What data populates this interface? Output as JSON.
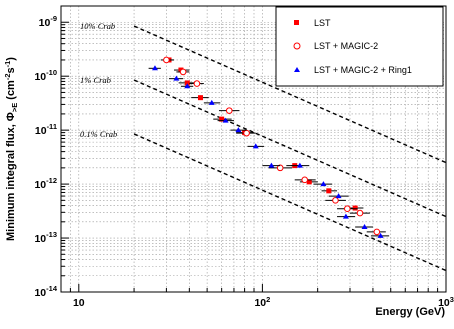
{
  "chart_data": {
    "type": "scatter",
    "x_scale": "log",
    "y_scale": "log",
    "xlim": [
      8,
      1000
    ],
    "ylim": [
      1e-14,
      2e-09
    ],
    "xlabel": "Energy (GeV)",
    "ylabel": "Minimum integral flux, Φ",
    "ylabel_sub": ">E",
    "ylabel_unit": " (cm",
    "ylabel_unit_exp1": "-2",
    "ylabel_unit_mid": "s",
    "ylabel_unit_exp2": "-1",
    "ylabel_unit_end": ")",
    "grid": true,
    "legend_placement": "top-right",
    "x_ticks": [
      {
        "value": 10,
        "label": "10"
      },
      {
        "value": 100,
        "label": "10",
        "exp": "2"
      },
      {
        "value": 1000,
        "label": "10",
        "exp": "3"
      }
    ],
    "y_ticks": [
      {
        "value": 1e-09,
        "label": "10",
        "exp": "-9"
      },
      {
        "value": 1e-10,
        "label": "10",
        "exp": "-10"
      },
      {
        "value": 1e-11,
        "label": "10",
        "exp": "-11"
      },
      {
        "value": 1e-12,
        "label": "10",
        "exp": "-12"
      },
      {
        "value": 1e-13,
        "label": "10",
        "exp": "-13"
      },
      {
        "value": 1e-14,
        "label": "10",
        "exp": "-14"
      }
    ],
    "reference_lines": [
      {
        "label": "10% Crab",
        "x": [
          20,
          1000
        ],
        "y": [
          8.5e-10,
          2.5e-12
        ]
      },
      {
        "label": "1% Crab",
        "x": [
          20,
          1000
        ],
        "y": [
          8.5e-11,
          2.5e-13
        ]
      },
      {
        "label": "0.1% Crab",
        "x": [
          20,
          1000
        ],
        "y": [
          8.5e-12,
          2.5e-14
        ]
      }
    ],
    "series": [
      {
        "name": "LST",
        "color": "#ff0000",
        "marker": "square",
        "points": [
          {
            "x": 31,
            "y": 2e-10,
            "xerr": [
              29,
              33
            ]
          },
          {
            "x": 36,
            "y": 1.3e-10,
            "xerr": [
              33,
              40
            ]
          },
          {
            "x": 39,
            "y": 7.5e-11,
            "xerr": [
              35,
              43
            ]
          },
          {
            "x": 46,
            "y": 4e-11,
            "xerr": [
              41,
              51
            ]
          },
          {
            "x": 60,
            "y": 1.6e-11,
            "xerr": [
              54,
              68
            ]
          },
          {
            "x": 80,
            "y": 9e-12,
            "xerr": [
              72,
              90
            ]
          },
          {
            "x": 150,
            "y": 2.2e-12,
            "xerr": [
              135,
              165
            ]
          },
          {
            "x": 180,
            "y": 1.1e-12,
            "xerr": [
              160,
              200
            ]
          },
          {
            "x": 230,
            "y": 7.5e-13,
            "xerr": [
              210,
              255
            ]
          },
          {
            "x": 320,
            "y": 3.6e-13,
            "xerr": [
              290,
              355
            ]
          }
        ]
      },
      {
        "name": "LST + MAGIC-2",
        "color": "#ff0000",
        "marker": "open-circle",
        "points": [
          {
            "x": 30,
            "y": 2e-10,
            "xerr": [
              28,
              33
            ]
          },
          {
            "x": 37,
            "y": 1.2e-10,
            "xerr": [
              34,
              40
            ]
          },
          {
            "x": 44,
            "y": 7.3e-11,
            "xerr": [
              40,
              48
            ]
          },
          {
            "x": 66,
            "y": 2.3e-11,
            "xerr": [
              58,
              75
            ]
          },
          {
            "x": 82,
            "y": 8.8e-12,
            "xerr": [
              72,
              92
            ]
          },
          {
            "x": 125,
            "y": 2e-12,
            "xerr": [
              108,
              145
            ]
          },
          {
            "x": 170,
            "y": 1.2e-12,
            "xerr": [
              150,
              195
            ]
          },
          {
            "x": 250,
            "y": 5e-13,
            "xerr": [
              220,
              285
            ]
          },
          {
            "x": 290,
            "y": 3.5e-13,
            "xerr": [
              255,
              330
            ]
          },
          {
            "x": 340,
            "y": 2.9e-13,
            "xerr": [
              300,
              385
            ]
          },
          {
            "x": 420,
            "y": 1.3e-13,
            "xerr": [
              370,
              470
            ]
          }
        ]
      },
      {
        "name": "LST + MAGIC-2 + Ring1",
        "color": "#0000ff",
        "marker": "triangle",
        "points": [
          {
            "x": 26,
            "y": 1.4e-10,
            "xerr": [
              24,
              28
            ]
          },
          {
            "x": 34,
            "y": 9e-11,
            "xerr": [
              31,
              37
            ]
          },
          {
            "x": 39,
            "y": 6.5e-11,
            "xerr": [
              36,
              42
            ]
          },
          {
            "x": 53,
            "y": 3.2e-11,
            "xerr": [
              48,
              59
            ]
          },
          {
            "x": 63,
            "y": 1.5e-11,
            "xerr": [
              57,
              70
            ]
          },
          {
            "x": 74,
            "y": 1e-11,
            "xerr": [
              67,
              82
            ]
          },
          {
            "x": 92,
            "y": 5e-12,
            "xerr": [
              83,
              102
            ]
          },
          {
            "x": 112,
            "y": 2.2e-12,
            "xerr": [
              100,
              125
            ]
          },
          {
            "x": 160,
            "y": 2.2e-12,
            "xerr": [
              143,
              180
            ]
          },
          {
            "x": 215,
            "y": 1e-12,
            "xerr": [
              190,
              240
            ]
          },
          {
            "x": 260,
            "y": 6e-13,
            "xerr": [
              230,
              295
            ]
          },
          {
            "x": 285,
            "y": 2.5e-13,
            "xerr": [
              255,
              320
            ]
          },
          {
            "x": 360,
            "y": 1.6e-13,
            "xerr": [
              320,
              400
            ]
          },
          {
            "x": 440,
            "y": 1.1e-13,
            "xerr": [
              390,
              490
            ]
          }
        ]
      }
    ]
  }
}
